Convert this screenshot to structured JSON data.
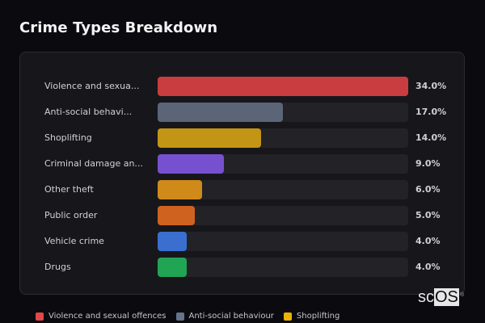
{
  "title": "Crime Types Breakdown",
  "chart_data": {
    "type": "bar",
    "orientation": "horizontal",
    "title": "Crime Types Breakdown",
    "categories": [
      "Violence and sexual offences",
      "Anti-social behaviour",
      "Shoplifting",
      "Criminal damage and arson",
      "Other theft",
      "Public order",
      "Vehicle crime",
      "Drugs"
    ],
    "display_labels": [
      "Violence and sexua...",
      "Anti-social behavi...",
      "Shoplifting",
      "Criminal damage an...",
      "Other theft",
      "Public order",
      "Vehicle crime",
      "Drugs"
    ],
    "values": [
      34.0,
      17.0,
      14.0,
      9.0,
      6.0,
      5.0,
      4.0,
      4.0
    ],
    "value_labels": [
      "34.0%",
      "17.0%",
      "14.0%",
      "9.0%",
      "6.0%",
      "5.0%",
      "4.0%",
      "4.0%"
    ],
    "colors": [
      "#c93c3f",
      "#5b6577",
      "#c39515",
      "#7650cf",
      "#cf8a19",
      "#d0621f",
      "#3a6fd0",
      "#21a454"
    ],
    "xlabel": "",
    "ylabel": "",
    "unit": "%",
    "grid": false,
    "legend_position": "bottom"
  },
  "legend": [
    {
      "label": "Violence and sexual offences",
      "color": "#e0474b"
    },
    {
      "label": "Anti-social behaviour",
      "color": "#64748b"
    },
    {
      "label": "Shoplifting",
      "color": "#eab308"
    }
  ],
  "watermark": {
    "prefix": "sc",
    "boxed": "OS",
    "mark": "®"
  }
}
